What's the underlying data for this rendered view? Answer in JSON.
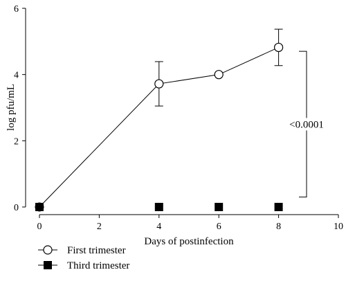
{
  "chart_data": {
    "type": "line",
    "xlabel": "Days of postinfection",
    "ylabel": "log pfu/mL",
    "xlim": [
      0,
      10
    ],
    "ylim": [
      0,
      6
    ],
    "xticks": [
      "0",
      "2",
      "4",
      "6",
      "8",
      "10"
    ],
    "yticks": [
      "0",
      "2",
      "4",
      "6"
    ],
    "grid": false,
    "legend_position": "bottom-left",
    "series": [
      {
        "name": "First trimester",
        "marker": "open-circle",
        "color": "#000000",
        "x": [
          0,
          4,
          6,
          8
        ],
        "y": [
          0,
          3.72,
          4.0,
          4.82
        ],
        "error": [
          0,
          0.67,
          0,
          0.55
        ]
      },
      {
        "name": "Third trimester",
        "marker": "filled-square",
        "color": "#000000",
        "x": [
          0,
          4,
          6,
          8
        ],
        "y": [
          0,
          0,
          0,
          0
        ],
        "error": [
          0,
          0,
          0,
          0
        ]
      }
    ],
    "annotations": [
      {
        "text": "<0.0001",
        "type": "significance-bracket",
        "y_range": [
          0.3,
          4.7
        ]
      }
    ]
  }
}
